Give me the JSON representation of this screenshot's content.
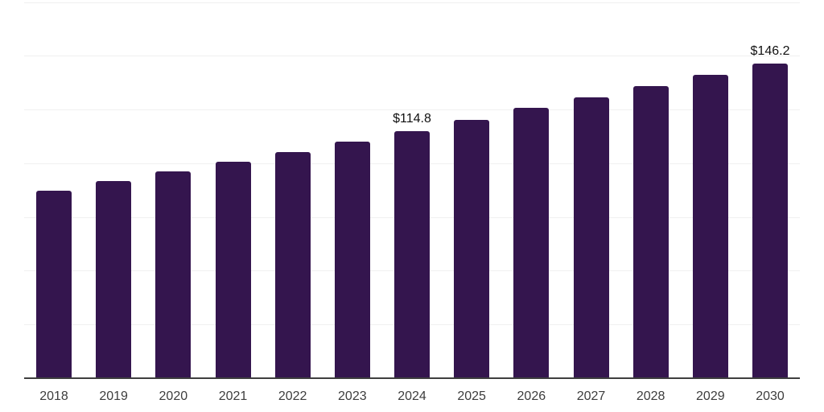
{
  "chart_data": {
    "type": "bar",
    "title": "",
    "xlabel": "",
    "ylabel": "",
    "categories": [
      "2018",
      "2019",
      "2020",
      "2021",
      "2022",
      "2023",
      "2024",
      "2025",
      "2026",
      "2027",
      "2028",
      "2029",
      "2030"
    ],
    "values": [
      87.4,
      91.8,
      96.2,
      100.7,
      105.1,
      110.0,
      114.8,
      120.3,
      125.8,
      130.8,
      135.9,
      141.2,
      146.2
    ],
    "value_labels": [
      "",
      "",
      "",
      "",
      "",
      "",
      "$114.8",
      "",
      "",
      "",
      "",
      "",
      "$146.2"
    ],
    "ylim": [
      0,
      175
    ],
    "gridline_step": 25,
    "grid": "horizontal",
    "legend_position": "none",
    "bar_color": "#34154e",
    "gridline_color": "#f0f0f0",
    "axis_line_color": "#3f3f3f",
    "tick_label_color": "#3d3d3d",
    "value_label_color": "#111111",
    "background_color": "#ffffff"
  }
}
